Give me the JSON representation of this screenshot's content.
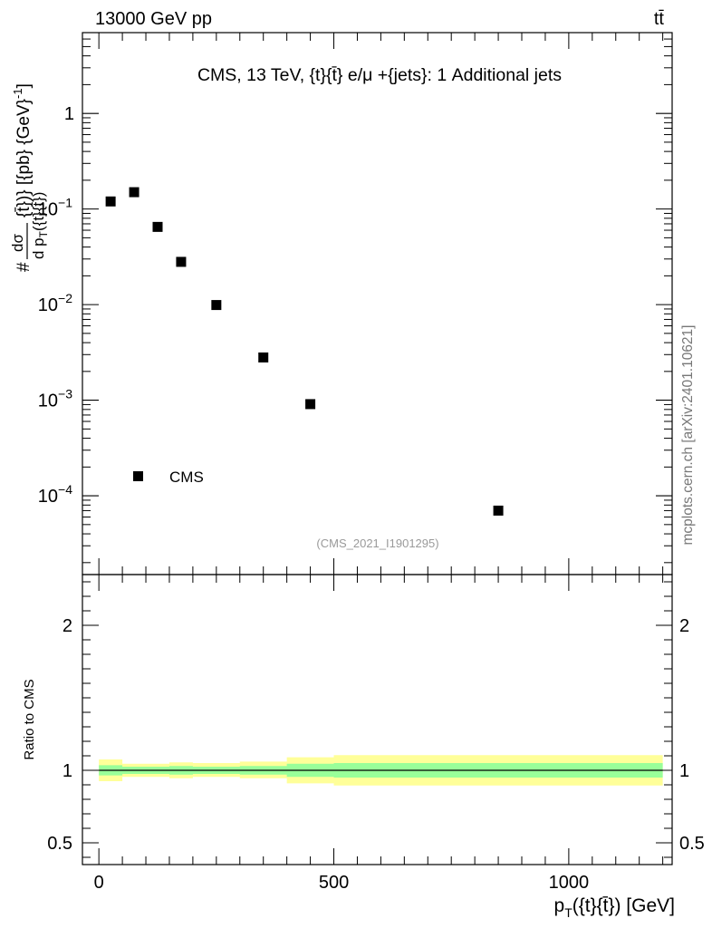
{
  "header": {
    "energy_label": "13000 GeV pp",
    "process_label": "tt̄"
  },
  "side_label": "mcplots.cern.ch [arXiv:2401.10621]",
  "colors": {
    "band_outer": "#ffff99",
    "band_inner": "#99ff99",
    "marker": "#000000"
  },
  "chart_data": [
    {
      "type": "scatter",
      "panel": "main",
      "title": "CMS, 13 TeV, {t}{t̄} e/μ +{jets}: 1 Additional jets",
      "ylabel": "# dσ / d p_T({t}{t̄}) [{pb} {GeV}^-1]",
      "ylabel_parts": {
        "prefix": "#",
        "numerator": "dσ",
        "denominator_pre": "d p",
        "denominator_sub": "T",
        "denominator_post": "({t}{t̄})",
        "units": "{t̄})} [{pb} {GeV}",
        "units_exp": "-1",
        "units_close": "]"
      },
      "yscale": "log",
      "ylim": [
        1.5e-05,
        7
      ],
      "xlim": [
        -35,
        1220
      ],
      "yticks": [
        {
          "value": 1,
          "base": "1",
          "exp": ""
        },
        {
          "value": 0.1,
          "base": "10",
          "exp": "−1"
        },
        {
          "value": 0.01,
          "base": "10",
          "exp": "−2"
        },
        {
          "value": 0.001,
          "base": "10",
          "exp": "−3"
        },
        {
          "value": 0.0001,
          "base": "10",
          "exp": "−4"
        }
      ],
      "series": [
        {
          "name": "CMS",
          "x": [
            25,
            75,
            125,
            175,
            250,
            350,
            450,
            850
          ],
          "y": [
            0.12,
            0.15,
            0.065,
            0.028,
            0.0099,
            0.0028,
            0.00091,
            7e-05
          ]
        }
      ],
      "legend": {
        "label": "CMS",
        "placement": "bottom-left"
      },
      "watermark": "(CMS_2021_I1901295)"
    },
    {
      "type": "area",
      "panel": "ratio",
      "ylabel": "Ratio to CMS",
      "xlabel": "p_T({t}{t̄}) [GeV]",
      "xlabel_parts": {
        "main": "p",
        "sub": "T",
        "post": "({t}{t̄}) [GeV]"
      },
      "ylim": [
        0.35,
        2.35
      ],
      "xlim": [
        -35,
        1220
      ],
      "yticks": [
        {
          "value": 0.5,
          "label": "0.5"
        },
        {
          "value": 1,
          "label": "1"
        },
        {
          "value": 2,
          "label": "2"
        }
      ],
      "xticks": [
        {
          "value": 0,
          "label": "0"
        },
        {
          "value": 500,
          "label": "500"
        },
        {
          "value": 1000,
          "label": "1000"
        }
      ],
      "bin_edges": [
        0,
        50,
        100,
        150,
        200,
        300,
        400,
        500,
        1200
      ],
      "outer_band": {
        "low": [
          0.925,
          0.955,
          0.955,
          0.945,
          0.955,
          0.945,
          0.91,
          0.895
        ],
        "high": [
          1.075,
          1.045,
          1.045,
          1.055,
          1.05,
          1.06,
          1.09,
          1.105
        ]
      },
      "inner_band": {
        "low": [
          0.965,
          0.975,
          0.975,
          0.97,
          0.975,
          0.97,
          0.955,
          0.95
        ],
        "high": [
          1.035,
          1.025,
          1.025,
          1.03,
          1.025,
          1.03,
          1.045,
          1.05
        ]
      },
      "reference_line": 1
    }
  ]
}
